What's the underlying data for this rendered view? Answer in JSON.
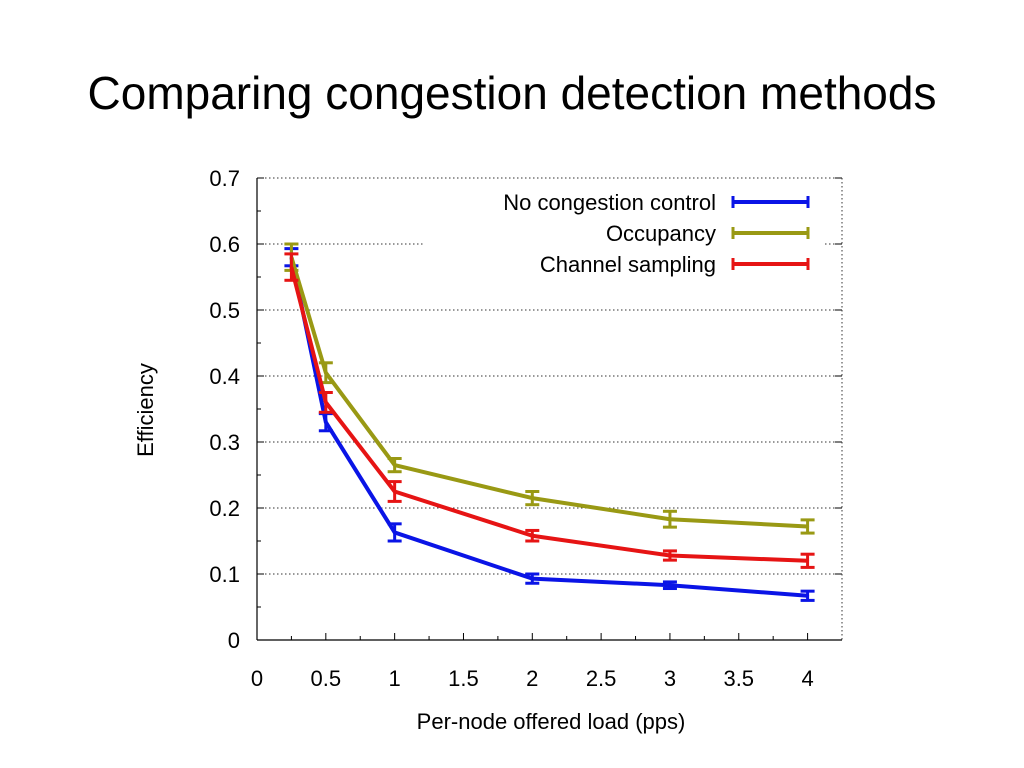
{
  "title": "Comparing congestion detection methods",
  "chart_data": {
    "type": "line",
    "xlabel": "Per-node offered load (pps)",
    "ylabel": "Efficiency",
    "xlim": [
      0,
      4.25
    ],
    "ylim": [
      0,
      0.7
    ],
    "xticks": [
      "0",
      "0.5",
      "1",
      "1.5",
      "2",
      "2.5",
      "3",
      "3.5",
      "4"
    ],
    "yticks": [
      "0",
      "0.1",
      "0.2",
      "0.3",
      "0.4",
      "0.5",
      "0.6",
      "0.7"
    ],
    "grid": "horizontal dotted",
    "legend_position": "top-right",
    "x": [
      0.25,
      0.5,
      1,
      2,
      3,
      4
    ],
    "series": [
      {
        "name": "No congestion control",
        "color": "#0a14e6",
        "values": [
          0.58,
          0.33,
          0.163,
          0.093,
          0.083,
          0.067
        ],
        "errors": [
          0.013,
          0.013,
          0.013,
          0.007,
          0.005,
          0.007
        ]
      },
      {
        "name": "Occupancy",
        "color": "#999914",
        "values": [
          0.58,
          0.405,
          0.265,
          0.215,
          0.183,
          0.172
        ],
        "errors": [
          0.02,
          0.015,
          0.01,
          0.01,
          0.012,
          0.01
        ]
      },
      {
        "name": "Channel sampling",
        "color": "#e61414",
        "values": [
          0.565,
          0.36,
          0.225,
          0.158,
          0.128,
          0.12
        ],
        "errors": [
          0.02,
          0.015,
          0.015,
          0.008,
          0.007,
          0.01
        ]
      }
    ]
  }
}
